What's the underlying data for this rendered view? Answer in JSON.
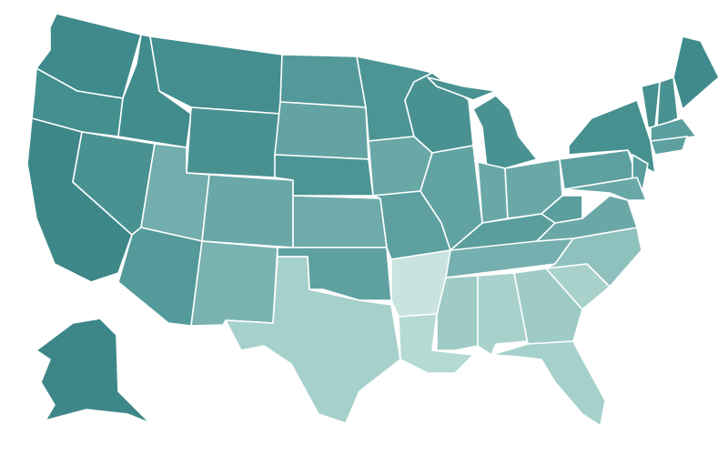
{
  "map": {
    "fills": [
      "#3f8a8c",
      "#44908f",
      "#3e8789",
      "#418c8d",
      "#448e8f",
      "#4a9292",
      "#4a9292",
      "#73adad",
      "#6aa8a8",
      "#549a9a",
      "#79b2b1",
      "#53999a",
      "#64a3a3",
      "#4d9595",
      "#6fabab",
      "#5fa1a1",
      "#a6d0cb",
      "#4d9595",
      "#6aa8a8",
      "#5ea0a0",
      "#c9e3de",
      "#b5d9d3",
      "#4a9292",
      "#61a2a2",
      "#4a9292",
      "#4a9292",
      "#6aa8a8",
      "#6aa8a8",
      "#5a9e9e",
      "#75afaf",
      "#9ecbc6",
      "#a8d1cc",
      "#9fcbc6",
      "#a6d0cb",
      "#a8d1cc",
      "#8ec1bd",
      "#6aa8a8",
      "#5a9e9e",
      "#5ea0a0",
      "#46908f",
      "#5a9e9e",
      "#6aa8a8",
      "#46908f",
      "#4a9292",
      "#3f8a8c",
      "#5a9e9e",
      "#5ea0a0",
      "#3e8789"
    ]
  }
}
